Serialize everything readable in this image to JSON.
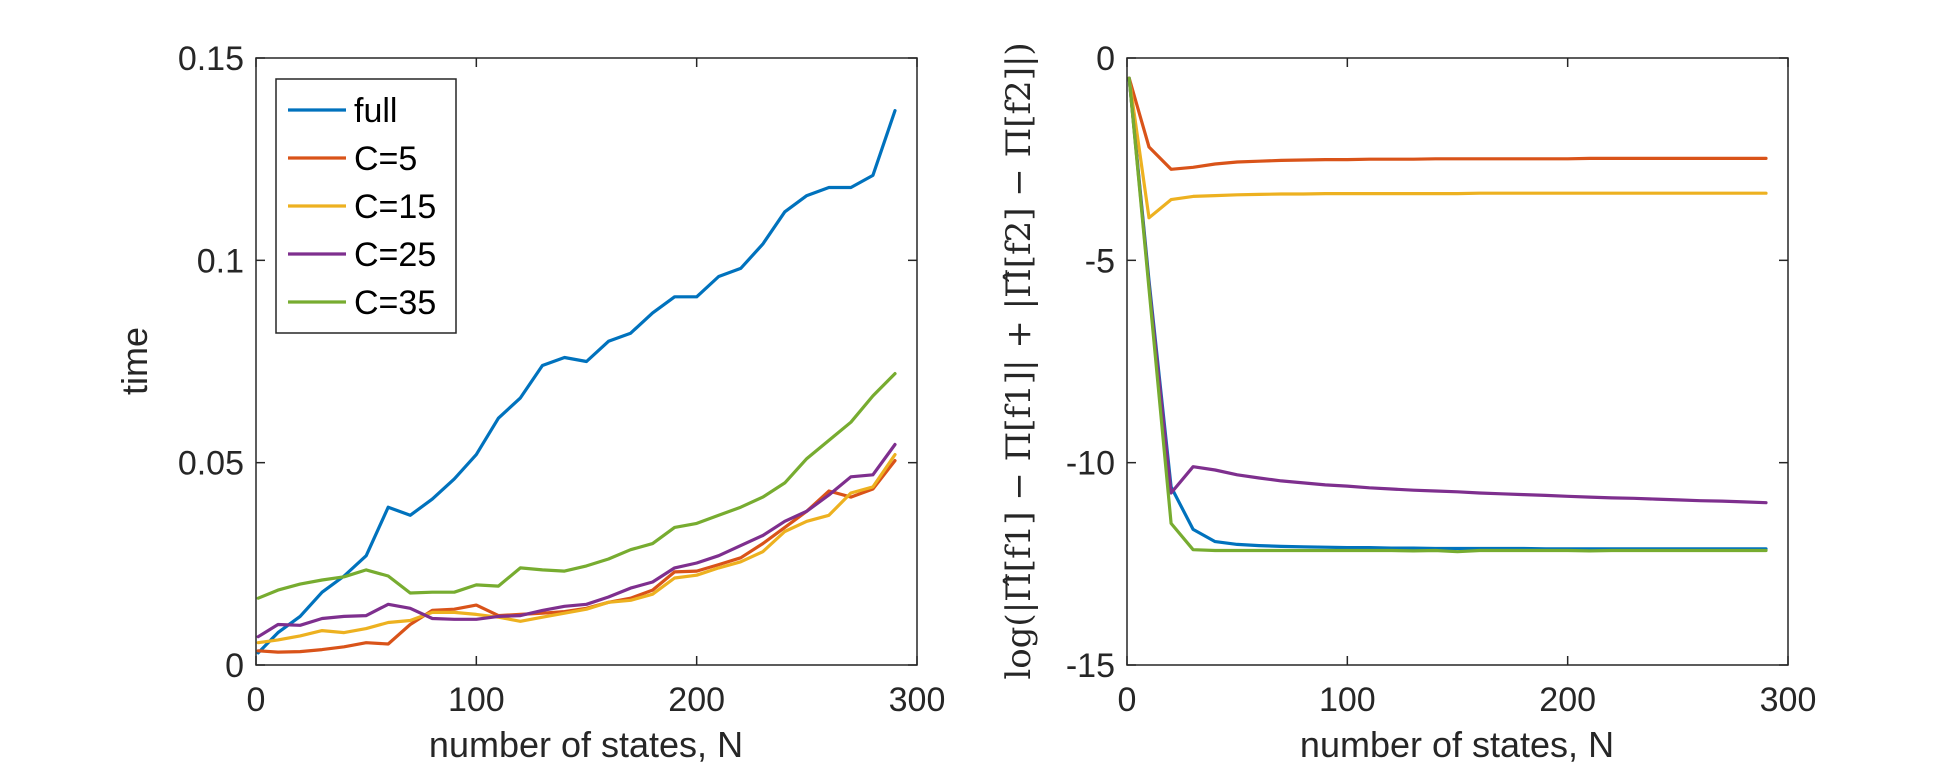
{
  "chart_data": [
    {
      "type": "line",
      "title": "",
      "xlabel": "number of states, N",
      "ylabel": "time",
      "xlim": [
        0,
        300
      ],
      "ylim": [
        0,
        0.15
      ],
      "xticks": [
        0,
        100,
        200,
        300
      ],
      "xtick_labels": [
        "0",
        "100",
        "200",
        "300"
      ],
      "yticks": [
        0,
        0.05,
        0.1,
        0.15
      ],
      "ytick_labels": [
        "0",
        "0.05",
        "0.1",
        "0.15"
      ],
      "legend_position": "top-left",
      "x": [
        1,
        10,
        20,
        30,
        40,
        50,
        60,
        70,
        80,
        90,
        100,
        110,
        120,
        130,
        140,
        150,
        160,
        170,
        180,
        190,
        200,
        210,
        220,
        230,
        240,
        250,
        260,
        270,
        280,
        290
      ],
      "series": [
        {
          "name": "full",
          "color": "#0072BD",
          "values": [
            0.003,
            0.008,
            0.012,
            0.018,
            0.022,
            0.027,
            0.039,
            0.037,
            0.041,
            0.046,
            0.052,
            0.061,
            0.066,
            0.074,
            0.076,
            0.075,
            0.08,
            0.082,
            0.087,
            0.091,
            0.091,
            0.096,
            0.098,
            0.104,
            0.112,
            0.116,
            0.118,
            0.118,
            0.121,
            0.137
          ]
        },
        {
          "name": "C=5",
          "color": "#D95319",
          "values": [
            0.0035,
            0.0032,
            0.0033,
            0.0038,
            0.0045,
            0.0055,
            0.0052,
            0.01,
            0.0135,
            0.0138,
            0.0148,
            0.0122,
            0.0125,
            0.0128,
            0.0132,
            0.014,
            0.0155,
            0.0165,
            0.0185,
            0.023,
            0.0232,
            0.0248,
            0.0265,
            0.03,
            0.034,
            0.038,
            0.043,
            0.0415,
            0.0435,
            0.0505
          ]
        },
        {
          "name": "C=15",
          "color": "#EDB120",
          "values": [
            0.0055,
            0.0062,
            0.0072,
            0.0085,
            0.008,
            0.009,
            0.0105,
            0.011,
            0.013,
            0.013,
            0.0125,
            0.0118,
            0.0108,
            0.0118,
            0.0128,
            0.0138,
            0.0155,
            0.016,
            0.0175,
            0.0215,
            0.0222,
            0.024,
            0.0255,
            0.028,
            0.033,
            0.0355,
            0.037,
            0.0425,
            0.044,
            0.052
          ]
        },
        {
          "name": "C=25",
          "color": "#7E2F8E",
          "values": [
            0.007,
            0.01,
            0.0098,
            0.0115,
            0.012,
            0.0122,
            0.015,
            0.014,
            0.0115,
            0.0113,
            0.0113,
            0.012,
            0.0122,
            0.0135,
            0.0145,
            0.015,
            0.0168,
            0.019,
            0.0205,
            0.024,
            0.0252,
            0.027,
            0.0295,
            0.032,
            0.0355,
            0.038,
            0.042,
            0.0465,
            0.047,
            0.0545
          ]
        },
        {
          "name": "C=35",
          "color": "#77AC30",
          "values": [
            0.0165,
            0.0185,
            0.02,
            0.021,
            0.0218,
            0.0235,
            0.022,
            0.0178,
            0.018,
            0.018,
            0.0198,
            0.0195,
            0.024,
            0.0235,
            0.0232,
            0.0245,
            0.0262,
            0.0285,
            0.03,
            0.034,
            0.035,
            0.037,
            0.039,
            0.0415,
            0.045,
            0.051,
            0.0555,
            0.06,
            0.0665,
            0.072
          ]
        }
      ]
    },
    {
      "type": "line",
      "title": "",
      "xlabel": "number of states, N",
      "ylabel": "log(|Π̂[f1] − Π[f1]| + |Π̂[f2] − Π[f2]|)",
      "xlim": [
        0,
        300
      ],
      "ylim": [
        -15,
        0
      ],
      "xticks": [
        0,
        100,
        200,
        300
      ],
      "xtick_labels": [
        "0",
        "100",
        "200",
        "300"
      ],
      "yticks": [
        -15,
        -10,
        -5,
        0
      ],
      "ytick_labels": [
        "-15",
        "-10",
        "-5",
        "0"
      ],
      "x": [
        1,
        10,
        20,
        30,
        40,
        50,
        60,
        70,
        80,
        90,
        100,
        110,
        120,
        130,
        140,
        150,
        160,
        170,
        180,
        190,
        200,
        210,
        220,
        230,
        240,
        250,
        260,
        270,
        280,
        290
      ],
      "series": [
        {
          "name": "full",
          "color": "#0072BD",
          "values": [
            -0.5,
            -5.5,
            -10.6,
            -11.65,
            -11.95,
            -12.02,
            -12.05,
            -12.07,
            -12.08,
            -12.09,
            -12.1,
            -12.1,
            -12.11,
            -12.11,
            -12.12,
            -12.12,
            -12.12,
            -12.12,
            -12.12,
            -12.13,
            -12.13,
            -12.13,
            -12.13,
            -12.13,
            -12.13,
            -12.13,
            -12.13,
            -12.13,
            -12.13,
            -12.13
          ]
        },
        {
          "name": "C=5",
          "color": "#D95319",
          "values": [
            -0.5,
            -2.2,
            -2.75,
            -2.7,
            -2.62,
            -2.57,
            -2.55,
            -2.53,
            -2.52,
            -2.51,
            -2.51,
            -2.5,
            -2.5,
            -2.5,
            -2.49,
            -2.49,
            -2.49,
            -2.49,
            -2.49,
            -2.49,
            -2.49,
            -2.48,
            -2.48,
            -2.48,
            -2.48,
            -2.48,
            -2.48,
            -2.48,
            -2.48,
            -2.48
          ]
        },
        {
          "name": "C=15",
          "color": "#EDB120",
          "values": [
            -0.5,
            -3.95,
            -3.5,
            -3.42,
            -3.4,
            -3.38,
            -3.37,
            -3.36,
            -3.36,
            -3.35,
            -3.35,
            -3.35,
            -3.35,
            -3.35,
            -3.35,
            -3.35,
            -3.34,
            -3.34,
            -3.34,
            -3.34,
            -3.34,
            -3.34,
            -3.34,
            -3.34,
            -3.34,
            -3.34,
            -3.34,
            -3.34,
            -3.34,
            -3.34
          ]
        },
        {
          "name": "C=25",
          "color": "#7E2F8E",
          "values": [
            -0.5,
            -5.6,
            -10.75,
            -10.1,
            -10.18,
            -10.3,
            -10.38,
            -10.45,
            -10.5,
            -10.55,
            -10.58,
            -10.62,
            -10.65,
            -10.68,
            -10.7,
            -10.72,
            -10.75,
            -10.77,
            -10.79,
            -10.81,
            -10.83,
            -10.85,
            -10.87,
            -10.88,
            -10.9,
            -10.92,
            -10.94,
            -10.95,
            -10.97,
            -10.99
          ]
        },
        {
          "name": "C=35",
          "color": "#77AC30",
          "values": [
            -0.5,
            -5.7,
            -11.5,
            -12.15,
            -12.17,
            -12.17,
            -12.17,
            -12.17,
            -12.17,
            -12.17,
            -12.17,
            -12.17,
            -12.17,
            -12.18,
            -12.17,
            -12.2,
            -12.17,
            -12.17,
            -12.17,
            -12.17,
            -12.17,
            -12.18,
            -12.17,
            -12.17,
            -12.17,
            -12.17,
            -12.17,
            -12.17,
            -12.17,
            -12.17
          ]
        }
      ]
    }
  ]
}
